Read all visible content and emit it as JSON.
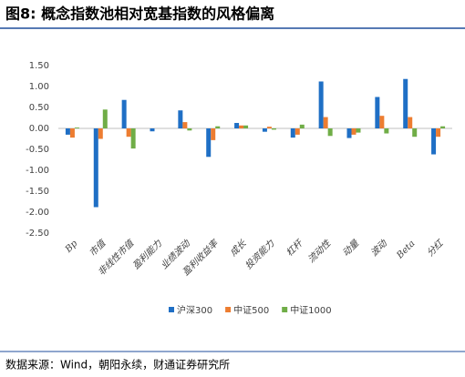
{
  "title": "图8: 概念指数池相对宽基指数的风格偏离",
  "source": "数据来源：Wind，朝阳永续，财通证券研究所",
  "chart_data": {
    "type": "bar",
    "categories": [
      "Bp",
      "市值",
      "非线性市值",
      "盈利能力",
      "业绩波动",
      "盈利收益率",
      "成长",
      "投资能力",
      "杠杆",
      "流动性",
      "动量",
      "波动",
      "Beta",
      "分红"
    ],
    "series": [
      {
        "name": "沪深300",
        "color": "#1f6fc5",
        "values": [
          -0.15,
          -1.88,
          0.68,
          -0.07,
          0.43,
          -0.68,
          0.13,
          -0.08,
          -0.22,
          1.12,
          -0.23,
          0.75,
          1.18,
          -0.62
        ]
      },
      {
        "name": "中证500",
        "color": "#ed7d31",
        "values": [
          -0.22,
          -0.25,
          -0.2,
          0.0,
          0.15,
          -0.28,
          0.07,
          0.04,
          -0.15,
          0.27,
          -0.15,
          0.3,
          0.27,
          -0.2
        ]
      },
      {
        "name": "中证1000",
        "color": "#70ad47",
        "values": [
          0.02,
          0.45,
          -0.48,
          0.0,
          -0.05,
          0.05,
          0.07,
          -0.03,
          0.09,
          -0.18,
          -0.1,
          -0.12,
          -0.2,
          0.05
        ]
      }
    ],
    "ylim": [
      -2.5,
      1.5
    ],
    "yticks": [
      {
        "value": -2.5,
        "label": "-2.50"
      },
      {
        "value": -2,
        "label": "-2.00"
      },
      {
        "value": -1.5,
        "label": "-1.50"
      },
      {
        "value": -1,
        "label": "-1.00"
      },
      {
        "value": -0.5,
        "label": "-0.50"
      },
      {
        "value": 0,
        "label": "0.00"
      },
      {
        "value": 0.5,
        "label": "0.50"
      },
      {
        "value": 1,
        "label": "1.00"
      },
      {
        "value": 1.5,
        "label": "1.50"
      }
    ],
    "grid": false,
    "legend": "bottom"
  }
}
